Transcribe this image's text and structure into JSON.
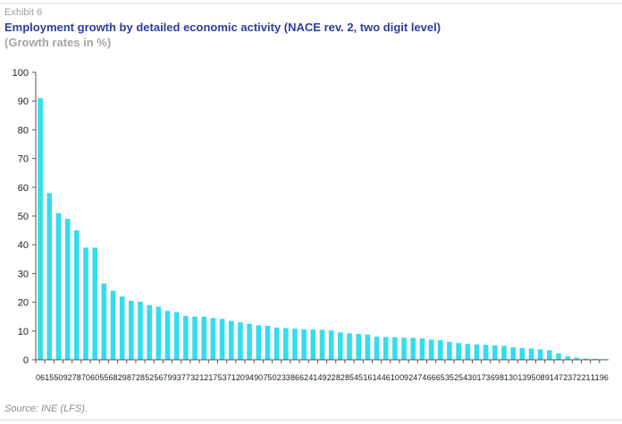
{
  "header": {
    "exhibit": "Exhibit 6",
    "title": "Employment growth by detailed economic activity (NACE rev. 2, two digit level)",
    "subtitle": "(Growth rates in %)"
  },
  "footer": {
    "source": "Source: INE (LFS)."
  },
  "colors": {
    "bar": "#33ddee",
    "axis": "#555555",
    "text": "#222222"
  },
  "chart_data": {
    "type": "bar",
    "title": "Employment growth by detailed economic activity (NACE rev. 2, two digit level)",
    "xlabel": "",
    "ylabel": "",
    "ylim": [
      0,
      100
    ],
    "yticks": [
      0,
      10,
      20,
      30,
      40,
      50,
      60,
      70,
      80,
      90,
      100
    ],
    "grid": false,
    "categories": [
      "06",
      "15",
      "50",
      "92",
      "78",
      "70",
      "60",
      "55",
      "68",
      "29",
      "87",
      "28",
      "52",
      "56",
      "79",
      "93",
      "77",
      "32",
      "12",
      "17",
      "53",
      "71",
      "20",
      "94",
      "90",
      "75",
      "02",
      "33",
      "86",
      "62",
      "41",
      "49",
      "22",
      "82",
      "85",
      "45",
      "16",
      "14",
      "46",
      "10",
      "09",
      "24",
      "74",
      "66",
      "65",
      "35",
      "25",
      "43",
      "01",
      "73",
      "69",
      "81",
      "30",
      "13",
      "95",
      "08",
      "91",
      "47",
      "23",
      "72",
      "21",
      "11",
      "96"
    ],
    "values": [
      91,
      58,
      51,
      49,
      45,
      39,
      39,
      26.5,
      24,
      22,
      20.5,
      20.2,
      19,
      18.5,
      17,
      16.5,
      15.2,
      15,
      15,
      14.5,
      14.2,
      13.5,
      13,
      12.5,
      12,
      11.8,
      11.2,
      11,
      10.8,
      10.6,
      10.5,
      10.4,
      10.2,
      9.5,
      9.2,
      9,
      8.8,
      8,
      7.9,
      7.8,
      7.7,
      7.6,
      7.4,
      7,
      6.8,
      6.2,
      5.8,
      5.5,
      5.3,
      5.2,
      5,
      4.8,
      4.3,
      4.1,
      3.9,
      3.6,
      3.3,
      2.2,
      1.2,
      0.7,
      0.4,
      0.3,
      0.2
    ]
  }
}
